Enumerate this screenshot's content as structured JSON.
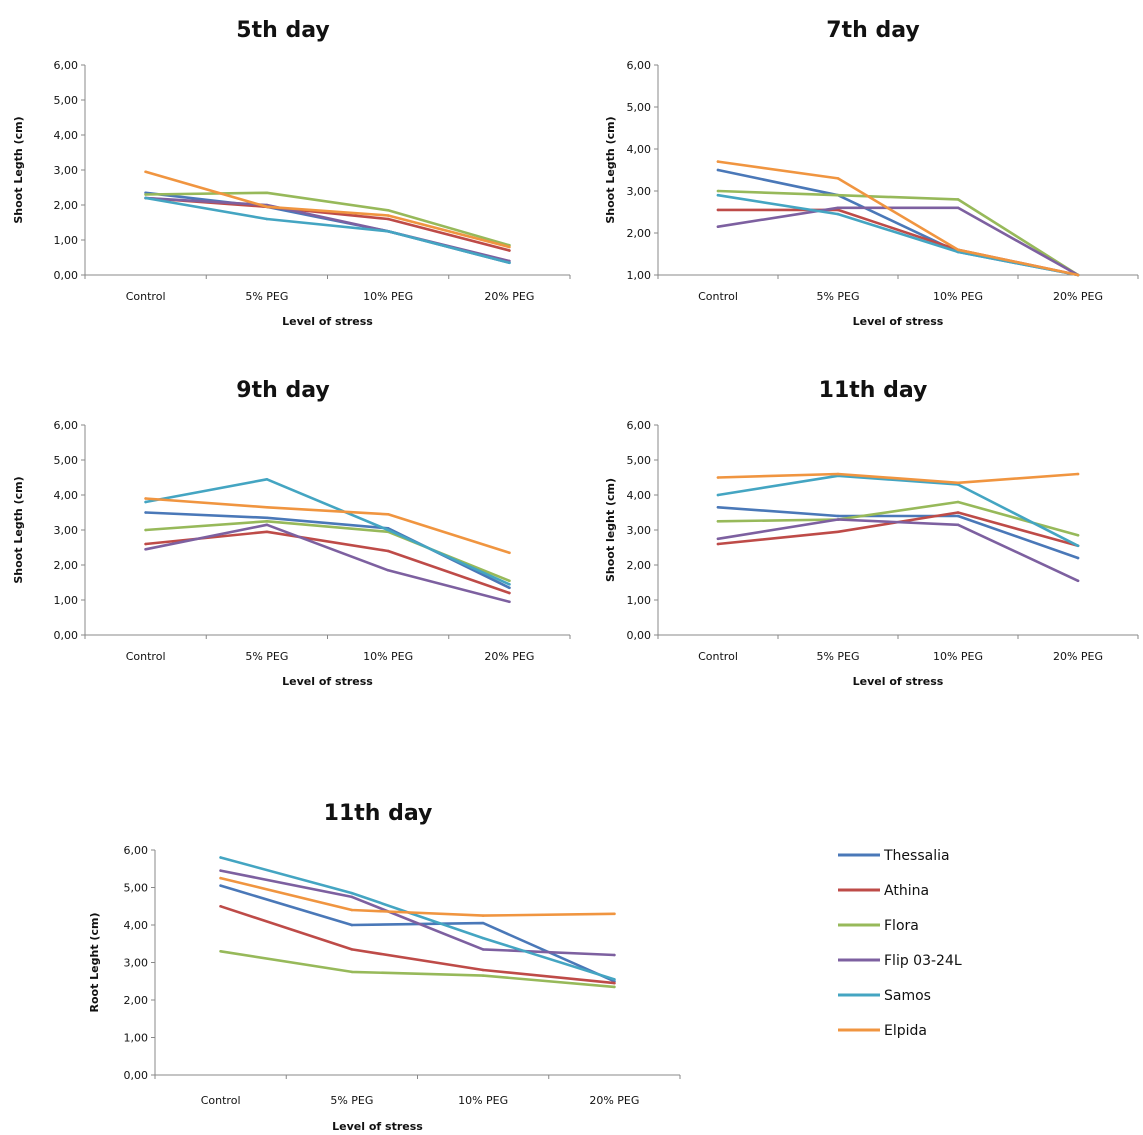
{
  "colors": {
    "Thessalia": "#4a78b8",
    "Athina": "#be4b48",
    "Flora": "#97b95a",
    "Flip 03-24L": "#7d60a0",
    "Samos": "#44a5c2",
    "Elpida": "#f09540"
  },
  "legend": [
    "Thessalia",
    "Athina",
    "Flora",
    "Flip 03-24L",
    "Samos",
    "Elpida"
  ],
  "chart_data": [
    {
      "type": "line",
      "title": "5th day",
      "xlabel": "Level of stress",
      "ylabel": "Shoot Legth (cm)",
      "categories": [
        "Control",
        "5% PEG",
        "10% PEG",
        "20% PEG"
      ],
      "yticks": [
        "0,00",
        "1,00",
        "2,00",
        "3,00",
        "4,00",
        "5,00",
        "6,00"
      ],
      "ylim": [
        0,
        6
      ],
      "series": [
        {
          "name": "Thessalia",
          "values": [
            2.35,
            1.95,
            1.25,
            0.35
          ]
        },
        {
          "name": "Athina",
          "values": [
            2.2,
            1.95,
            1.6,
            0.7
          ]
        },
        {
          "name": "Flora",
          "values": [
            2.3,
            2.35,
            1.85,
            0.85
          ]
        },
        {
          "name": "Flip 03-24L",
          "values": [
            2.2,
            2.0,
            1.25,
            0.4
          ]
        },
        {
          "name": "Samos",
          "values": [
            2.2,
            1.6,
            1.25,
            0.35
          ]
        },
        {
          "name": "Elpida",
          "values": [
            2.95,
            1.95,
            1.7,
            0.8
          ]
        }
      ]
    },
    {
      "type": "line",
      "title": "7th day",
      "xlabel": "Level of stress",
      "ylabel": "Shoot Legth (cm)",
      "categories": [
        "Control",
        "5% PEG",
        "10% PEG",
        "20% PEG"
      ],
      "yticks": [
        "1,00",
        "2,00",
        "3,00",
        "4,00",
        "5,00",
        "6,00"
      ],
      "ylim": [
        1,
        6
      ],
      "series": [
        {
          "name": "Thessalia",
          "values": [
            3.5,
            2.9,
            1.55,
            1.0
          ]
        },
        {
          "name": "Athina",
          "values": [
            2.55,
            2.55,
            1.6,
            1.0
          ]
        },
        {
          "name": "Flora",
          "values": [
            3.0,
            2.9,
            2.8,
            1.0
          ]
        },
        {
          "name": "Flip 03-24L",
          "values": [
            2.15,
            2.6,
            2.6,
            1.0
          ]
        },
        {
          "name": "Samos",
          "values": [
            2.9,
            2.45,
            1.55,
            1.0
          ]
        },
        {
          "name": "Elpida",
          "values": [
            3.7,
            3.3,
            1.6,
            1.0
          ]
        }
      ]
    },
    {
      "type": "line",
      "title": "9th day",
      "xlabel": "Level of stress",
      "ylabel": "Shoot Legth (cm)",
      "categories": [
        "Control",
        "5% PEG",
        "10% PEG",
        "20% PEG"
      ],
      "yticks": [
        "0,00",
        "1,00",
        "2,00",
        "3,00",
        "4,00",
        "5,00",
        "6,00"
      ],
      "ylim": [
        0,
        6
      ],
      "series": [
        {
          "name": "Thessalia",
          "values": [
            3.5,
            3.35,
            3.05,
            1.35
          ]
        },
        {
          "name": "Athina",
          "values": [
            2.6,
            2.95,
            2.4,
            1.2
          ]
        },
        {
          "name": "Flora",
          "values": [
            3.0,
            3.25,
            2.95,
            1.55
          ]
        },
        {
          "name": "Flip 03-24L",
          "values": [
            2.45,
            3.15,
            1.85,
            0.95
          ]
        },
        {
          "name": "Samos",
          "values": [
            3.8,
            4.45,
            3.0,
            1.45
          ]
        },
        {
          "name": "Elpida",
          "values": [
            3.9,
            3.65,
            3.45,
            2.35
          ]
        }
      ]
    },
    {
      "type": "line",
      "title": "11th day",
      "xlabel": "Level of stress",
      "ylabel": "Shoot leght (cm)",
      "categories": [
        "Control",
        "5% PEG",
        "10% PEG",
        "20% PEG"
      ],
      "yticks": [
        "0,00",
        "1,00",
        "2,00",
        "3,00",
        "4,00",
        "5,00",
        "6,00"
      ],
      "ylim": [
        0,
        6
      ],
      "series": [
        {
          "name": "Thessalia",
          "values": [
            3.65,
            3.4,
            3.4,
            2.2
          ]
        },
        {
          "name": "Athina",
          "values": [
            2.6,
            2.95,
            3.5,
            2.55
          ]
        },
        {
          "name": "Flora",
          "values": [
            3.25,
            3.3,
            3.8,
            2.85
          ]
        },
        {
          "name": "Flip 03-24L",
          "values": [
            2.75,
            3.3,
            3.15,
            1.55
          ]
        },
        {
          "name": "Samos",
          "values": [
            4.0,
            4.55,
            4.3,
            2.55
          ]
        },
        {
          "name": "Elpida",
          "values": [
            4.5,
            4.6,
            4.35,
            4.6
          ]
        }
      ]
    },
    {
      "type": "line",
      "title": "11th day",
      "xlabel": "Level of stress",
      "ylabel": "Root Leght (cm)",
      "categories": [
        "Control",
        "5% PEG",
        "10% PEG",
        "20% PEG"
      ],
      "yticks": [
        "0,00",
        "1,00",
        "2,00",
        "3,00",
        "4,00",
        "5,00",
        "6,00"
      ],
      "ylim": [
        0,
        6
      ],
      "legend_position": "right",
      "series": [
        {
          "name": "Thessalia",
          "values": [
            5.05,
            4.0,
            4.05,
            2.5
          ]
        },
        {
          "name": "Athina",
          "values": [
            4.5,
            3.35,
            2.8,
            2.45
          ]
        },
        {
          "name": "Flora",
          "values": [
            3.3,
            2.75,
            2.65,
            2.35
          ]
        },
        {
          "name": "Flip 03-24L",
          "values": [
            5.45,
            4.75,
            3.35,
            3.2
          ]
        },
        {
          "name": "Samos",
          "values": [
            5.8,
            4.85,
            3.65,
            2.55
          ]
        },
        {
          "name": "Elpida",
          "values": [
            5.25,
            4.4,
            4.25,
            4.3
          ]
        }
      ]
    }
  ]
}
